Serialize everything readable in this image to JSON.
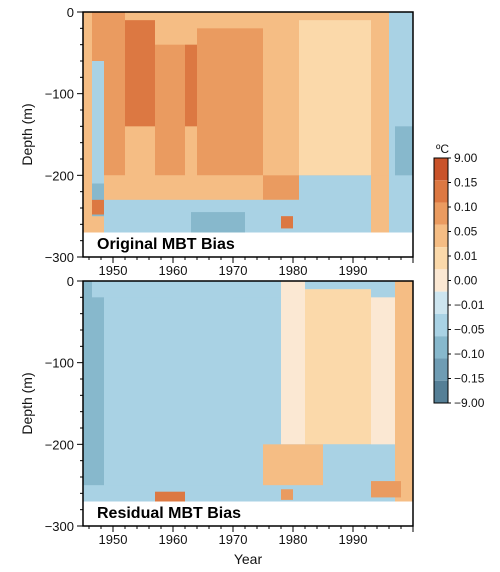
{
  "chart_data": [
    {
      "type": "heatmap",
      "label": "Original MBT Bias",
      "xlabel": "",
      "ylabel": "Depth (m)",
      "xlim": [
        1945,
        2000
      ],
      "ylim": [
        -300,
        0
      ],
      "xticks": [
        "1950",
        "1960",
        "1970",
        "1980",
        "1990"
      ],
      "yticks": [
        "0",
        "−100",
        "−200",
        "−300"
      ],
      "base_value": 0.05,
      "data_bottom_depth": -270,
      "regions": [
        {
          "x": [
            1945,
            1946.5
          ],
          "y": [
            -250,
            0
          ],
          "value": 0.05
        },
        {
          "x": [
            1946.5,
            1948.5
          ],
          "y": [
            -60,
            0
          ],
          "value": 0.1
        },
        {
          "x": [
            1946.5,
            1948.5
          ],
          "y": [
            -250,
            -60
          ],
          "value": -0.05
        },
        {
          "x": [
            1946.5,
            1948.5
          ],
          "y": [
            -250,
            -210
          ],
          "value": -0.1
        },
        {
          "x": [
            1946.5,
            1948.5
          ],
          "y": [
            -248,
            -230
          ],
          "value": 0.15
        },
        {
          "x": [
            1948.5,
            1952
          ],
          "y": [
            -200,
            0
          ],
          "value": 0.1
        },
        {
          "x": [
            1952,
            1957
          ],
          "y": [
            -140,
            -10
          ],
          "value": 0.15
        },
        {
          "x": [
            1957,
            1962
          ],
          "y": [
            -200,
            -40
          ],
          "value": 0.1
        },
        {
          "x": [
            1962,
            1964
          ],
          "y": [
            -140,
            -40
          ],
          "value": 0.15
        },
        {
          "x": [
            1964,
            1975
          ],
          "y": [
            -200,
            -20
          ],
          "value": 0.1
        },
        {
          "x": [
            1975,
            1981
          ],
          "y": [
            -200,
            0
          ],
          "value": 0.05
        },
        {
          "x": [
            1981,
            1993
          ],
          "y": [
            -200,
            -10
          ],
          "value": 0.01
        },
        {
          "x": [
            1993,
            1996
          ],
          "y": [
            -200,
            0
          ],
          "value": 0.05
        },
        {
          "x": [
            1996,
            2000
          ],
          "y": [
            -270,
            0
          ],
          "value": -0.05
        },
        {
          "x": [
            1997,
            2000
          ],
          "y": [
            -200,
            -140
          ],
          "value": -0.1
        },
        {
          "x": [
            1948.5,
            1975
          ],
          "y": [
            -230,
            -200
          ],
          "value": 0.05
        },
        {
          "x": [
            1975,
            1981
          ],
          "y": [
            -230,
            -200
          ],
          "value": 0.1
        },
        {
          "x": [
            1981,
            1993
          ],
          "y": [
            -270,
            -200
          ],
          "value": -0.05
        },
        {
          "x": [
            1948.5,
            1981
          ],
          "y": [
            -270,
            -230
          ],
          "value": -0.05
        },
        {
          "x": [
            1963,
            1972
          ],
          "y": [
            -270,
            -245
          ],
          "value": -0.1
        },
        {
          "x": [
            1978,
            1980
          ],
          "y": [
            -265,
            -250
          ],
          "value": 0.15
        }
      ]
    },
    {
      "type": "heatmap",
      "label": "Residual MBT Bias",
      "xlabel": "Year",
      "ylabel": "Depth (m)",
      "xlim": [
        1945,
        2000
      ],
      "ylim": [
        -300,
        0
      ],
      "xticks": [
        "1950",
        "1960",
        "1970",
        "1980",
        "1990"
      ],
      "yticks": [
        "0",
        "−100",
        "−200",
        "−300"
      ],
      "base_value": -0.05,
      "data_bottom_depth": -270,
      "regions": [
        {
          "x": [
            1945,
            1946.5
          ],
          "y": [
            -250,
            0
          ],
          "value": -0.1
        },
        {
          "x": [
            1946.5,
            1948.5
          ],
          "y": [
            -250,
            -20
          ],
          "value": -0.1
        },
        {
          "x": [
            1948.5,
            1960
          ],
          "y": [
            -250,
            -20
          ],
          "value": -0.05
        },
        {
          "x": [
            1960,
            1970
          ],
          "y": [
            -250,
            -30
          ],
          "value": -0.05
        },
        {
          "x": [
            1970,
            1978
          ],
          "y": [
            -200,
            -20
          ],
          "value": -0.05
        },
        {
          "x": [
            1978,
            1982
          ],
          "y": [
            -200,
            0
          ],
          "value": 0.0
        },
        {
          "x": [
            1982,
            1993
          ],
          "y": [
            -200,
            -10
          ],
          "value": 0.01
        },
        {
          "x": [
            1993,
            1997
          ],
          "y": [
            -200,
            -20
          ],
          "value": 0.0
        },
        {
          "x": [
            1997,
            2000
          ],
          "y": [
            -270,
            0
          ],
          "value": 0.05
        },
        {
          "x": [
            1985,
            1993
          ],
          "y": [
            -270,
            -200
          ],
          "value": -0.05
        },
        {
          "x": [
            1975,
            1985
          ],
          "y": [
            -250,
            -200
          ],
          "value": 0.05
        },
        {
          "x": [
            1948.5,
            1975
          ],
          "y": [
            -270,
            -250
          ],
          "value": -0.05
        },
        {
          "x": [
            1957,
            1962
          ],
          "y": [
            -270,
            -258
          ],
          "value": 0.15
        },
        {
          "x": [
            1978,
            1980
          ],
          "y": [
            -268,
            -255
          ],
          "value": 0.1
        },
        {
          "x": [
            1993,
            1998
          ],
          "y": [
            -265,
            -245
          ],
          "value": 0.1
        }
      ]
    }
  ],
  "colorbar": {
    "unit": "ºC",
    "labels": [
      "9.00",
      "0.15",
      "0.10",
      "0.05",
      "0.01",
      "0.00",
      "−0.01",
      "−0.05",
      "−0.10",
      "−0.15",
      "−9.00"
    ],
    "colors": [
      "#c9532a",
      "#dc7842",
      "#ea9b60",
      "#f5bd84",
      "#fbd9aa",
      "#fbe8d3",
      "#cde5ef",
      "#a9d2e4",
      "#87b8cc",
      "#6f9cb3",
      "#557f96"
    ],
    "levels": [
      9.0,
      0.15,
      0.1,
      0.05,
      0.01,
      0.0,
      -0.01,
      -0.05,
      -0.1,
      -0.15,
      -9.0
    ]
  }
}
